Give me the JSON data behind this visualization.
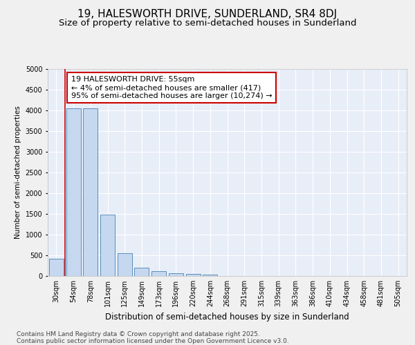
{
  "title1": "19, HALESWORTH DRIVE, SUNDERLAND, SR4 8DJ",
  "title2": "Size of property relative to semi-detached houses in Sunderland",
  "xlabel": "Distribution of semi-detached houses by size in Sunderland",
  "ylabel": "Number of semi-detached properties",
  "categories": [
    "30sqm",
    "54sqm",
    "78sqm",
    "101sqm",
    "125sqm",
    "149sqm",
    "173sqm",
    "196sqm",
    "220sqm",
    "244sqm",
    "268sqm",
    "291sqm",
    "315sqm",
    "339sqm",
    "363sqm",
    "386sqm",
    "410sqm",
    "434sqm",
    "458sqm",
    "481sqm",
    "505sqm"
  ],
  "values": [
    420,
    4050,
    4050,
    1480,
    550,
    200,
    115,
    75,
    55,
    40,
    0,
    0,
    0,
    0,
    0,
    0,
    0,
    0,
    0,
    0,
    0
  ],
  "bar_color": "#c5d8f0",
  "bar_edge_color": "#5b8db8",
  "property_line_x": 0.5,
  "annotation_text": "19 HALESWORTH DRIVE: 55sqm\n← 4% of semi-detached houses are smaller (417)\n95% of semi-detached houses are larger (10,274) →",
  "annotation_box_color": "#ffffff",
  "annotation_box_edge": "#cc0000",
  "property_line_color": "#cc0000",
  "ylim": [
    0,
    5000
  ],
  "yticks": [
    0,
    500,
    1000,
    1500,
    2000,
    2500,
    3000,
    3500,
    4000,
    4500,
    5000
  ],
  "background_color": "#f0f0f0",
  "plot_bg_color": "#e8eef8",
  "grid_color": "#ffffff",
  "footer_text": "Contains HM Land Registry data © Crown copyright and database right 2025.\nContains public sector information licensed under the Open Government Licence v3.0.",
  "title1_fontsize": 11,
  "title2_fontsize": 9.5,
  "xlabel_fontsize": 8.5,
  "ylabel_fontsize": 7.5,
  "tick_fontsize": 7,
  "annotation_fontsize": 8,
  "footer_fontsize": 6.5
}
